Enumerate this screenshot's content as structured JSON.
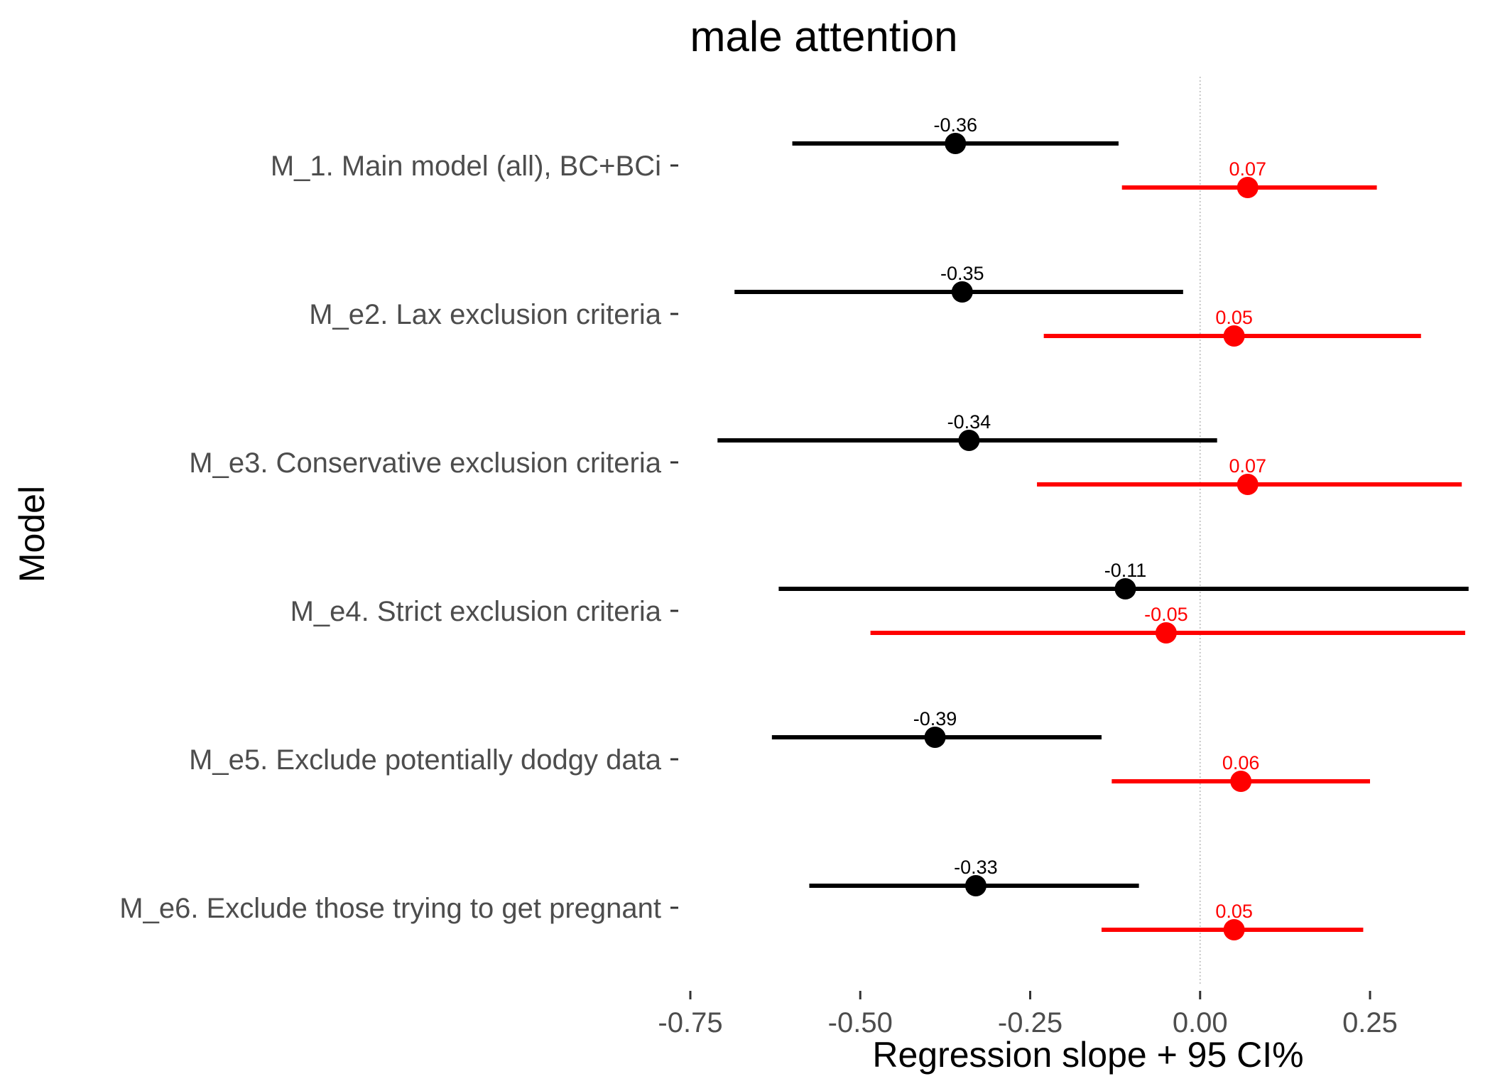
{
  "chart_data": {
    "type": "forest",
    "title": "male attention",
    "xlabel": "Regression slope + 95 CI%",
    "ylabel": "Model",
    "xlim": [
      -0.75,
      0.43
    ],
    "x_ticks": [
      -0.75,
      -0.5,
      -0.25,
      0.0,
      0.25
    ],
    "x_tick_labels": [
      "-0.75",
      "-0.50",
      "-0.25",
      "0.00",
      "0.25"
    ],
    "reference_line": 0,
    "grid": false,
    "legend": "none",
    "categories": [
      "M_1. Main model (all), BC+BCi",
      "M_e2. Lax exclusion criteria",
      "M_e3. Conservative exclusion criteria",
      "M_e4. Strict exclusion criteria",
      "M_e5. Exclude potentially dodgy data",
      "M_e6. Exclude those trying to get pregnant"
    ],
    "series": [
      {
        "color": "#000000",
        "estimates": [
          -0.36,
          -0.35,
          -0.34,
          -0.11,
          -0.39,
          -0.33
        ],
        "labels": [
          "-0.36",
          "-0.35",
          "-0.34",
          "-0.11",
          "-0.39",
          "-0.33"
        ],
        "ci_low": [
          -0.6,
          -0.685,
          -0.71,
          -0.62,
          -0.63,
          -0.575
        ],
        "ci_high": [
          -0.12,
          -0.025,
          0.025,
          0.395,
          -0.145,
          -0.09
        ]
      },
      {
        "color": "#ff0000",
        "estimates": [
          0.07,
          0.05,
          0.07,
          -0.05,
          0.06,
          0.05
        ],
        "labels": [
          "0.07",
          "0.05",
          "0.07",
          "-0.05",
          "0.06",
          "0.05"
        ],
        "ci_low": [
          -0.115,
          -0.23,
          -0.24,
          -0.485,
          -0.13,
          -0.145
        ],
        "ci_high": [
          0.26,
          0.325,
          0.385,
          0.39,
          0.25,
          0.24
        ]
      }
    ]
  }
}
